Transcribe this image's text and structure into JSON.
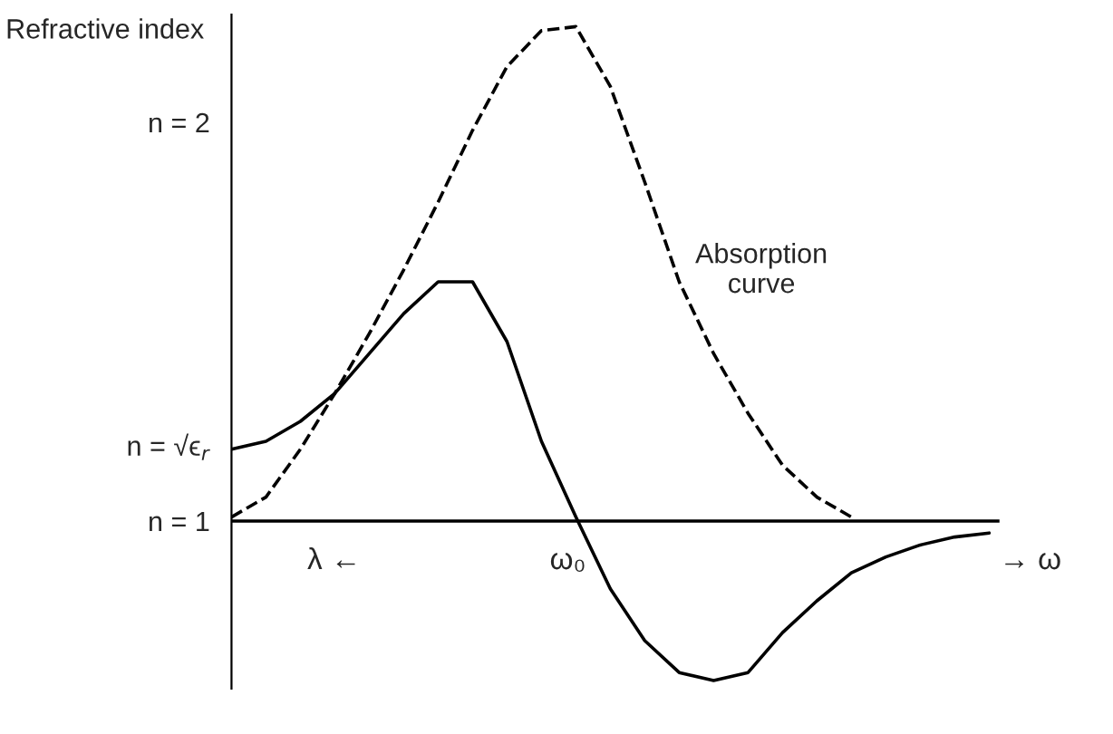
{
  "chart_data": {
    "type": "line",
    "ylabel": "Refractive index",
    "ylim": [
      0.58,
      2.27
    ],
    "categories": [
      null,
      null,
      null,
      null,
      null,
      null,
      null,
      null,
      null,
      null,
      null,
      null,
      null,
      null,
      null,
      null,
      null,
      null,
      null,
      null,
      null,
      null,
      null
    ],
    "yticks": [
      {
        "value": 1,
        "label": "n = 1"
      },
      {
        "value": 1.19,
        "label": "n = √ϵ$_{r}$"
      },
      {
        "value": 2,
        "label": "n = 2"
      }
    ],
    "grid": false,
    "legend": false,
    "marker": "none",
    "ref_lines": [
      {
        "axis": "y",
        "value": 1,
        "label": null,
        "color": "#000000"
      }
    ],
    "series": [
      {
        "color": "#000000",
        "line_style": "solid",
        "values": [
          1.18,
          1.2,
          1.25,
          1.32,
          1.42,
          1.52,
          1.6,
          1.6,
          1.45,
          1.2,
          1.01,
          0.83,
          0.7,
          0.62,
          0.6,
          0.62,
          0.72,
          0.8,
          0.87,
          0.91,
          0.94,
          0.96,
          0.97
        ]
      },
      {
        "color": "#000000",
        "line_style": "dashed",
        "values": [
          1.01,
          1.06,
          1.18,
          1.32,
          1.47,
          1.63,
          1.8,
          1.98,
          2.14,
          2.23,
          2.24,
          2.09,
          1.85,
          1.6,
          1.42,
          1.27,
          1.14,
          1.06,
          1.01,
          null,
          null,
          null,
          null
        ]
      }
    ],
    "annotations": [
      "Absorption curve",
      "λ ←",
      "→ ω",
      "ω₀"
    ]
  }
}
